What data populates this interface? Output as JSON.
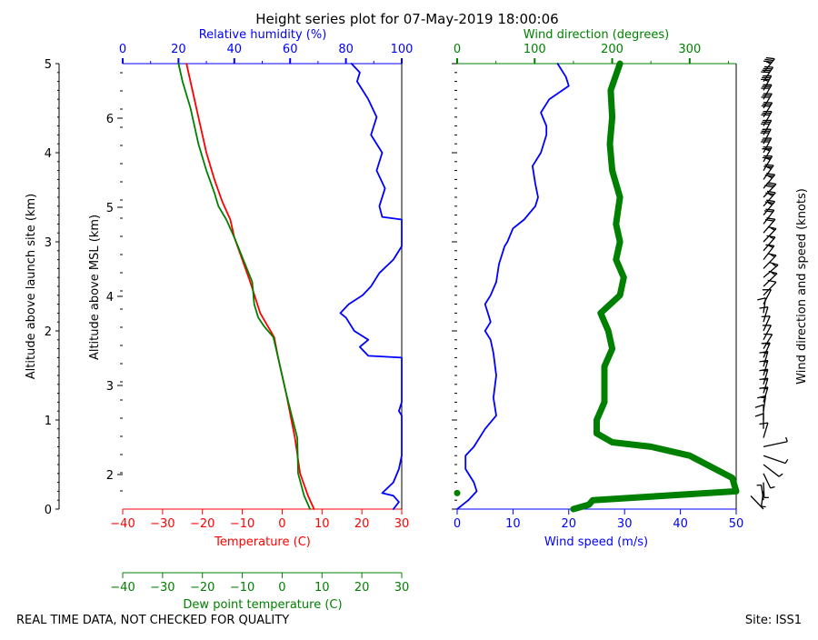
{
  "title": "Height series plot for 07-May-2019 18:00:06",
  "footer_left": "REAL TIME DATA, NOT CHECKED FOR QUALITY",
  "footer_right": "Site: ISS1",
  "colors": {
    "temperature": "#ff0000",
    "dewpoint": "#008000",
    "humidity": "#0000ff",
    "wind_speed": "#0000ff",
    "wind_direction": "#008000",
    "axis": "#000000"
  },
  "chart_data": [
    {
      "type": "line",
      "name": "thermo-panel",
      "x_axes": {
        "temperature": {
          "label": "Temperature (C)",
          "range": [
            -40,
            30
          ],
          "ticks": [
            -40,
            -30,
            -20,
            -10,
            0,
            10,
            20,
            30
          ]
        },
        "dewpoint": {
          "label": "Dew point temperature (C)",
          "range": [
            -40,
            30
          ],
          "ticks": [
            -40,
            -30,
            -20,
            -10,
            0,
            10,
            20,
            30
          ]
        },
        "humidity": {
          "label": "Relative humidity (%)",
          "range": [
            0,
            100
          ],
          "ticks": [
            0,
            20,
            40,
            60,
            80,
            100
          ]
        }
      },
      "y_axes": {
        "launch_site": {
          "label": "Altitude above launch site (km)",
          "range": [
            0,
            5
          ],
          "ticks": [
            0,
            1,
            2,
            3,
            4,
            5
          ]
        },
        "msl": {
          "label": "Altitude above MSL (km)",
          "ticks": [
            2,
            3,
            4,
            5,
            6
          ]
        }
      },
      "series": [
        {
          "name": "Temperature",
          "axis": "temperature",
          "points": [
            [
              8,
              0
            ],
            [
              6.5,
              0.15
            ],
            [
              4.5,
              0.4
            ],
            [
              3.2,
              0.8
            ],
            [
              1,
              1.3
            ],
            [
              -1,
              1.7
            ],
            [
              -2,
              1.93
            ],
            [
              -5.5,
              2.2
            ],
            [
              -8,
              2.55
            ],
            [
              -12,
              3.05
            ],
            [
              -13,
              3.25
            ],
            [
              -15,
              3.45
            ],
            [
              -17,
              3.7
            ],
            [
              -19,
              4
            ],
            [
              -21.5,
              4.5
            ],
            [
              -24,
              5
            ]
          ]
        },
        {
          "name": "Dew point",
          "axis": "dewpoint",
          "points": [
            [
              7,
              0
            ],
            [
              5.5,
              0.15
            ],
            [
              4,
              0.4
            ],
            [
              3.8,
              0.8
            ],
            [
              1,
              1.3
            ],
            [
              -1,
              1.7
            ],
            [
              -2.2,
              1.93
            ],
            [
              -4.5,
              2.05
            ],
            [
              -6,
              2.15
            ],
            [
              -7,
              2.3
            ],
            [
              -7.5,
              2.55
            ],
            [
              -12,
              3.05
            ],
            [
              -14,
              3.25
            ],
            [
              -16,
              3.4
            ],
            [
              -17,
              3.55
            ],
            [
              -19,
              3.8
            ],
            [
              -21,
              4.1
            ],
            [
              -23,
              4.5
            ],
            [
              -25,
              4.8
            ],
            [
              -26,
              5
            ]
          ]
        },
        {
          "name": "Relative humidity",
          "axis": "humidity",
          "points": [
            [
              97,
              0
            ],
            [
              99,
              0.08
            ],
            [
              97,
              0.15
            ],
            [
              93,
              0.18
            ],
            [
              97,
              0.3
            ],
            [
              99,
              0.45
            ],
            [
              100,
              0.6
            ],
            [
              100,
              1.05
            ],
            [
              99,
              1.1
            ],
            [
              100,
              1.2
            ],
            [
              100,
              1.7
            ],
            [
              88,
              1.72
            ],
            [
              85,
              1.82
            ],
            [
              88,
              1.9
            ],
            [
              83,
              2.0
            ],
            [
              80,
              2.15
            ],
            [
              78,
              2.2
            ],
            [
              81,
              2.3
            ],
            [
              86,
              2.4
            ],
            [
              89,
              2.5
            ],
            [
              92,
              2.65
            ],
            [
              97,
              2.8
            ],
            [
              100,
              2.95
            ],
            [
              100,
              3.25
            ],
            [
              93,
              3.28
            ],
            [
              92,
              3.4
            ],
            [
              94,
              3.6
            ],
            [
              91,
              3.8
            ],
            [
              93,
              4.0
            ],
            [
              89,
              4.2
            ],
            [
              91,
              4.4
            ],
            [
              88,
              4.6
            ],
            [
              84,
              4.8
            ],
            [
              85,
              4.9
            ],
            [
              82,
              5
            ]
          ]
        }
      ]
    },
    {
      "type": "line",
      "name": "wind-panel",
      "x_axes": {
        "wind_speed": {
          "label": "Wind speed (m/s)",
          "range": [
            0,
            50
          ],
          "ticks": [
            0,
            10,
            20,
            30,
            40,
            50
          ]
        },
        "wind_direction": {
          "label": "Wind direction (degrees)",
          "range": [
            0,
            360
          ],
          "ticks": [
            0,
            100,
            200,
            300
          ]
        }
      },
      "y_axis": {
        "range": [
          0,
          5
        ]
      },
      "series": [
        {
          "name": "Wind speed",
          "axis": "wind_speed",
          "points": [
            [
              0,
              0
            ],
            [
              2,
              0.1
            ],
            [
              3.5,
              0.2
            ],
            [
              3,
              0.3
            ],
            [
              1.5,
              0.45
            ],
            [
              1.5,
              0.6
            ],
            [
              3,
              0.7
            ],
            [
              5,
              0.9
            ],
            [
              7,
              1.05
            ],
            [
              6.5,
              1.25
            ],
            [
              7,
              1.5
            ],
            [
              6.5,
              1.75
            ],
            [
              6,
              1.9
            ],
            [
              5,
              2.0
            ],
            [
              6,
              2.1
            ],
            [
              5.5,
              2.2
            ],
            [
              5,
              2.3
            ],
            [
              6,
              2.4
            ],
            [
              7,
              2.55
            ],
            [
              7.5,
              2.75
            ],
            [
              8.5,
              2.95
            ],
            [
              9,
              3.0
            ],
            [
              10,
              3.15
            ],
            [
              12,
              3.25
            ],
            [
              14,
              3.4
            ],
            [
              14.5,
              3.5
            ],
            [
              14,
              3.65
            ],
            [
              13.5,
              3.85
            ],
            [
              15,
              4.0
            ],
            [
              16,
              4.2
            ],
            [
              16,
              4.3
            ],
            [
              15,
              4.45
            ],
            [
              16.5,
              4.6
            ],
            [
              20,
              4.75
            ],
            [
              19.5,
              4.85
            ],
            [
              18,
              5
            ]
          ]
        },
        {
          "name": "Wind direction",
          "axis": "wind_direction",
          "points": [
            [
              150,
              0
            ],
            [
              170,
              0.05
            ],
            [
              175,
              0.1
            ],
            [
              365,
              0.2
            ],
            [
              355,
              0.35
            ],
            [
              300,
              0.6
            ],
            [
              250,
              0.7
            ],
            [
              200,
              0.75
            ],
            [
              180,
              0.85
            ],
            [
              180,
              1.0
            ],
            [
              190,
              1.2
            ],
            [
              190,
              1.6
            ],
            [
              200,
              1.8
            ],
            [
              195,
              2.0
            ],
            [
              185,
              2.2
            ],
            [
              210,
              2.4
            ],
            [
              215,
              2.6
            ],
            [
              205,
              2.8
            ],
            [
              210,
              3.0
            ],
            [
              205,
              3.2
            ],
            [
              210,
              3.5
            ],
            [
              200,
              3.8
            ],
            [
              197,
              4.1
            ],
            [
              200,
              4.4
            ],
            [
              198,
              4.7
            ],
            [
              210,
              5
            ]
          ]
        },
        {
          "name": "Near-surface wind speed",
          "axis": "wind_speed",
          "points": [
            [
              0,
              0.18
            ]
          ]
        }
      ],
      "barb_label": "Wind direction and speed (knots)"
    }
  ]
}
